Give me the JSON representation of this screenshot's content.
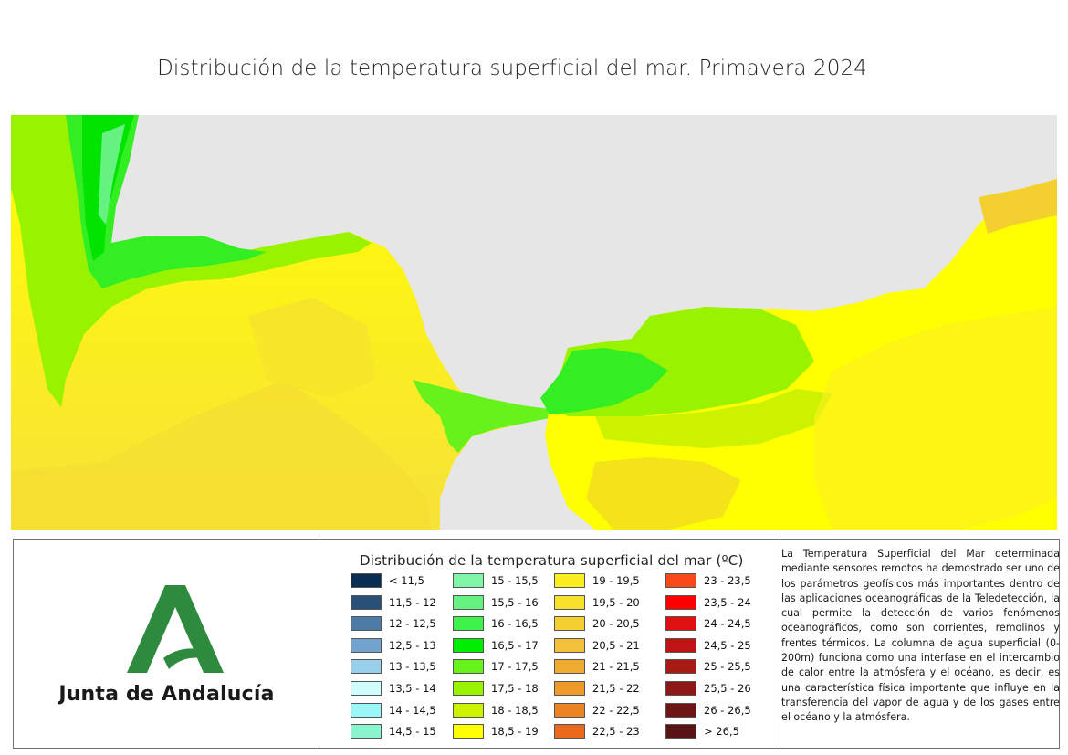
{
  "title": "Distribución de la temperatura superficial del mar. Primavera 2024",
  "logo": {
    "text": "Junta de Andalucía",
    "colors": {
      "primary": "#2e8b3e",
      "dark": "#1f6a2d"
    }
  },
  "map": {
    "land_color": "#e6e6e6",
    "gradient_note_colors": [
      "#00e400",
      "#66ff33",
      "#99ff00",
      "#ccff00",
      "#ffff00",
      "#f5e31a",
      "#f0c830"
    ]
  },
  "legend": {
    "title": "Distribución de la temperatura superficial del mar (ºC)",
    "items": [
      {
        "label": "< 11,5",
        "color": "#0a2e52"
      },
      {
        "label": "11,5 - 12",
        "color": "#2a5078"
      },
      {
        "label": "12 - 12,5",
        "color": "#4b7ba6"
      },
      {
        "label": "12,5 - 13",
        "color": "#72a3cf"
      },
      {
        "label": "13 - 13,5",
        "color": "#98d0ea"
      },
      {
        "label": "13,5 - 14",
        "color": "#cffdfd"
      },
      {
        "label": "14 - 14,5",
        "color": "#99f7f7"
      },
      {
        "label": "14,5 - 15",
        "color": "#8af5cc"
      },
      {
        "label": "15 - 15,5",
        "color": "#80f6a8"
      },
      {
        "label": "15,5 - 16",
        "color": "#66f280"
      },
      {
        "label": "16 - 16,5",
        "color": "#3ef24a"
      },
      {
        "label": "16,5 - 17",
        "color": "#00ee00"
      },
      {
        "label": "17 - 17,5",
        "color": "#66f21a"
      },
      {
        "label": "17,5 - 18",
        "color": "#99f200"
      },
      {
        "label": "18 - 18,5",
        "color": "#ccf200"
      },
      {
        "label": "18,5 - 19",
        "color": "#ffff00"
      },
      {
        "label": "19 - 19,5",
        "color": "#fbee20"
      },
      {
        "label": "19,5 - 20",
        "color": "#f7e02c"
      },
      {
        "label": "20 - 20,5",
        "color": "#f4cf30"
      },
      {
        "label": "20,5 - 21",
        "color": "#f2c03a"
      },
      {
        "label": "21 - 21,5",
        "color": "#efaa30"
      },
      {
        "label": "21,5 - 22",
        "color": "#ee9a2a"
      },
      {
        "label": "22 - 22,5",
        "color": "#ec8424"
      },
      {
        "label": "22,5 - 23",
        "color": "#ec681c"
      },
      {
        "label": "23 - 23,5",
        "color": "#f84a18"
      },
      {
        "label": "23,5 - 24",
        "color": "#ff0000"
      },
      {
        "label": "24 - 24,5",
        "color": "#e01010"
      },
      {
        "label": "24,5 - 25",
        "color": "#c01414"
      },
      {
        "label": "25 - 25,5",
        "color": "#a81a14"
      },
      {
        "label": "25,5 - 26",
        "color": "#8c1818"
      },
      {
        "label": "26 - 26,5",
        "color": "#6e1616"
      },
      {
        "label": "> 26,5",
        "color": "#581414"
      }
    ]
  },
  "description": "La Temperatura Superficial del Mar determinada mediante sensores remotos ha demostrado ser uno de los parámetros geofísicos más importantes dentro de las aplicaciones oceanográficas de la Teledetección, la cual permite la detección de varios fenómenos oceanográficos, como son corrientes, remolinos y frentes térmicos. La columna de agua superficial (0-200m) funciona como una interfase en el intercambio de calor entre la atmósfera y el océano, es decir, es una característica física importante que influye en la transferencia del vapor de agua y de los gases entre el océano y la atmósfera."
}
